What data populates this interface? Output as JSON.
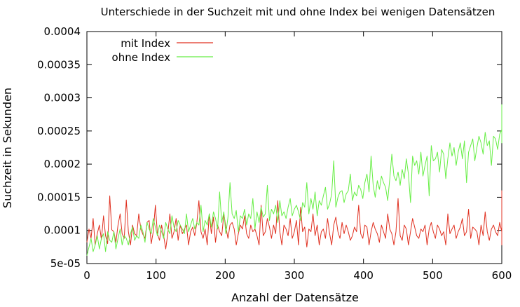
{
  "chart_data": {
    "type": "line",
    "title": "Unterschiede in der Suchzeit mit und ohne Index bei wenigen Datensätzen",
    "xlabel": "Anzahl der Datensätze",
    "ylabel": "Suchzeit in Sekunden",
    "xlim": [
      0,
      600
    ],
    "ylim": [
      5e-05,
      0.0004
    ],
    "x_ticks": [
      0,
      100,
      200,
      300,
      400,
      500,
      600
    ],
    "x_tick_labels": [
      "0",
      "100",
      "200",
      "300",
      "400",
      "500",
      "600"
    ],
    "y_ticks": [
      5e-05,
      0.0001,
      0.00015,
      0.0002,
      0.00025,
      0.0003,
      0.00035,
      0.0004
    ],
    "y_tick_labels": [
      "5e-05",
      "0.0001",
      "0.00015",
      "0.0002",
      "0.00025",
      "0.0003",
      "0.00035",
      "0.0004"
    ],
    "grid": false,
    "legend_position": "top-left",
    "x_step": 3,
    "series": [
      {
        "name": "mit Index",
        "color": "#e03020",
        "values": [
          8.2e-05,
          0.000102,
          8.8e-05,
          0.000118,
          7.8e-05,
          9.5e-05,
          0.000108,
          8.6e-05,
          0.000122,
          9.2e-05,
          8e-05,
          0.000152,
          0.000101,
          9.8e-05,
          8.2e-05,
          0.000108,
          0.000125,
          9.5e-05,
          8.8e-05,
          0.000146,
          9.8e-05,
          7.8e-05,
          0.000108,
          9.5e-05,
          9.2e-05,
          0.000125,
          0.000102,
          9.4e-05,
          8.8e-05,
          0.000112,
          0.000115,
          8e-05,
          9.8e-05,
          0.000138,
          9.5e-05,
          8.5e-05,
          0.000108,
          9.2e-05,
          7.2e-05,
          9.5e-05,
          0.000125,
          8.8e-05,
          9.8e-05,
          0.000118,
          8.5e-05,
          0.000108,
          9.5e-05,
          0.000102,
          0.000108,
          7.8e-05,
          9.8e-05,
          0.000105,
          9.2e-05,
          0.000112,
          0.000145,
          9.8e-05,
          8.8e-05,
          0.000102,
          7.8e-05,
          0.000125,
          9.5e-05,
          0.00012,
          8.2e-05,
          0.000108,
          9.8e-05,
          9.2e-05,
          0.000125,
          0.000105,
          8.8e-05,
          0.000108,
          0.000112,
          0.000102,
          7.8e-05,
          9.5e-05,
          0.000108,
          0.000102,
          0.000122,
          9.5e-05,
          8.8e-05,
          0.000108,
          9.8e-05,
          0.000102,
          9.2e-05,
          7.8e-05,
          0.000138,
          9.2e-05,
          9.8e-05,
          0.000118,
          0.000105,
          8.8e-05,
          0.000108,
          9.5e-05,
          0.000145,
          9.8e-05,
          7.8e-05,
          0.000108,
          0.000102,
          9.2e-05,
          0.000118,
          8.8e-05,
          9.8e-05,
          0.000115,
          7.8e-05,
          0.000135,
          9.8e-05,
          0.000105,
          7.5e-05,
          0.000102,
          9.8e-05,
          0.000125,
          9.2e-05,
          0.000108,
          7.8e-05,
          9.8e-05,
          0.000102,
          8.8e-05,
          0.000118,
          9.5e-05,
          7.8e-05,
          0.000108,
          0.00012,
          9.8e-05,
          8.8e-05,
          0.000112,
          9.5e-05,
          0.000108,
          9.8e-05,
          8.5e-05,
          9.2e-05,
          0.000105,
          9.8e-05,
          0.000138,
          9.5e-05,
          8.8e-05,
          0.000108,
          0.000105,
          7.8e-05,
          9.8e-05,
          0.000112,
          0.000102,
          9.5e-05,
          8.2e-05,
          0.000108,
          9.8e-05,
          8.8e-05,
          0.000125,
          0.000102,
          9.5e-05,
          7.8e-05,
          9.8e-05,
          0.000148,
          9.2e-05,
          8.5e-05,
          0.000108,
          0.000102,
          7.8e-05,
          9.8e-05,
          0.000118,
          0.000105,
          9.2e-05,
          8.8e-05,
          0.000102,
          9.8e-05,
          0.000108,
          7.8e-05,
          0.000102,
          0.000112,
          9.8e-05,
          8.8e-05,
          0.000108,
          0.000102,
          9.2e-05,
          9.8e-05,
          7.8e-05,
          0.000125,
          9.5e-05,
          0.000102,
          0.000108,
          8.8e-05,
          9.8e-05,
          0.000105,
          0.000118,
          9.2e-05,
          9.8e-05,
          0.000132,
          8.8e-05,
          0.000105,
          0.000102,
          9.8e-05,
          7.8e-05,
          0.000108,
          9.2e-05,
          0.000128,
          9.8e-05,
          8.5e-05,
          0.000102,
          0.000108,
          9.8e-05,
          9.2e-05,
          0.000112,
          9.8e-05,
          8.8e-05,
          0.00016,
          0.000102,
          7.8e-05,
          0.000108,
          0.000125
        ]
      },
      {
        "name": "ohne Index",
        "color": "#66ee44",
        "values": [
          6.2e-05,
          7.5e-05,
          8.8e-05,
          6.8e-05,
          7.8e-05,
          9.2e-05,
          7.2e-05,
          8.8e-05,
          9.5e-05,
          6.8e-05,
          9.8e-05,
          8.5e-05,
          8.2e-05,
          9.8e-05,
          7.2e-05,
          8.8e-05,
          0.000102,
          7.8e-05,
          9.2e-05,
          8.8e-05,
          7.8e-05,
          9.5e-05,
          0.000105,
          8.5e-05,
          9.2e-05,
          8.8e-05,
          0.000108,
          9.8e-05,
          8.2e-05,
          0.000112,
          0.000102,
          9.5e-05,
          0.000118,
          0.000105,
          9.2e-05,
          0.000108,
          9.8e-05,
          8.8e-05,
          0.000112,
          0.000102,
          9.5e-05,
          0.000122,
          0.000105,
          9.8e-05,
          0.000115,
          0.000108,
          0.000102,
          9.5e-05,
          0.000125,
          9.8e-05,
          0.000108,
          0.000118,
          0.000102,
          0.000112,
          0.000108,
          0.000138,
          9.8e-05,
          0.000115,
          0.000108,
          0.000125,
          0.000105,
          0.000128,
          0.000118,
          0.000102,
          0.000158,
          0.000112,
          0.000128,
          9.5e-05,
          0.00012,
          0.000172,
          0.000125,
          0.000118,
          0.00013,
          9.8e-05,
          0.000122,
          0.000118,
          0.000132,
          0.000108,
          0.000125,
          0.000118,
          0.000148,
          0.000102,
          0.000128,
          0.000112,
          0.000135,
          0.00012,
          0.000125,
          0.000168,
          0.000115,
          0.000132,
          0.000125,
          0.000138,
          0.000112,
          0.000145,
          0.000122,
          0.000128,
          0.000118,
          0.000135,
          0.000148,
          0.000122,
          0.000132,
          0.000138,
          0.000128,
          0.000115,
          0.000142,
          0.000135,
          0.000172,
          0.000125,
          0.000148,
          0.000132,
          0.000158,
          0.000122,
          0.000145,
          0.000138,
          0.000152,
          0.000165,
          0.000132,
          0.00014,
          0.000155,
          0.000205,
          0.000135,
          0.00015,
          0.000158,
          0.00016,
          0.000142,
          0.000155,
          0.00016,
          0.000185,
          0.000145,
          0.000158,
          0.000152,
          0.000168,
          0.000162,
          0.000148,
          0.000172,
          0.000185,
          0.000158,
          0.000212,
          0.000168,
          0.00015,
          0.000175,
          0.000162,
          0.000182,
          0.000172,
          0.000165,
          0.000145,
          0.000178,
          0.000215,
          0.000182,
          0.000175,
          0.000188,
          0.000168,
          0.000192,
          0.000178,
          0.000208,
          0.000185,
          0.000142,
          0.000212,
          0.000198,
          0.000205,
          0.000185,
          0.000218,
          0.000182,
          0.000198,
          0.000212,
          0.000152,
          0.000228,
          0.000205,
          0.000208,
          0.000218,
          0.000188,
          0.000222,
          0.000215,
          0.000178,
          0.000208,
          0.000232,
          0.000212,
          0.000225,
          0.000198,
          0.000218,
          0.000232,
          0.000208,
          0.000235,
          0.000172,
          0.000218,
          0.000228,
          0.000238,
          0.000205,
          0.000225,
          0.000242,
          0.000232,
          0.000215,
          0.000248,
          0.000228,
          0.000235,
          0.000198,
          0.000242,
          0.000238,
          0.000222,
          0.000245,
          0.000252,
          0.000232,
          0.000242,
          0.000258,
          0.000248,
          0.000235,
          0.000255,
          0.000245,
          0.000238,
          0.000252,
          0.000258,
          0.000262,
          0.000248,
          0.00026,
          0.000265,
          0.000258,
          0.000252,
          0.000268,
          0.000262,
          0.000265,
          0.00027,
          0.00026,
          0.000268,
          0.000275,
          0.000265,
          0.000272,
          0.00028,
          0.000275,
          0.000285,
          0.000278,
          0.00029
        ]
      }
    ]
  }
}
